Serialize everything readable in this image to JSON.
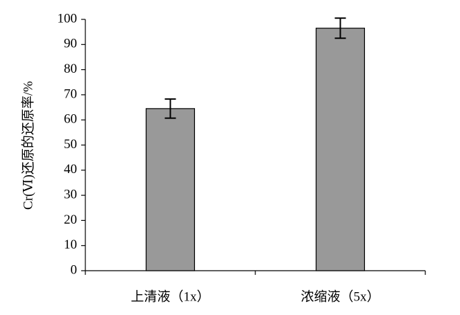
{
  "chart_data": {
    "type": "bar",
    "y_label": "Cr(Ⅵ)还原的还原率/%",
    "categories": [
      "上清液（1x）",
      "浓缩液（5x）"
    ],
    "values": [
      64.5,
      96.5
    ],
    "errors": [
      3.8,
      4.0
    ],
    "color": "#999999",
    "ylim": [
      0,
      100
    ],
    "yticks": [
      0,
      10,
      20,
      30,
      40,
      50,
      60,
      70,
      80,
      90,
      100
    ],
    "grid": false
  }
}
